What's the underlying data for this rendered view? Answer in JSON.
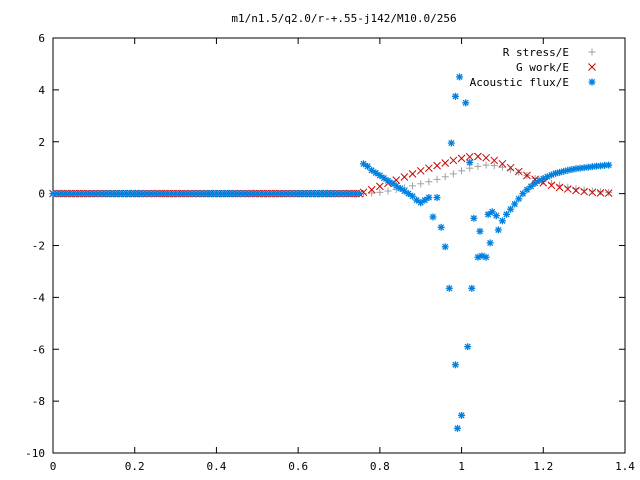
{
  "chart_data": {
    "type": "scatter",
    "title": "m1/n1.5/q2.0/r-+.55-j142/M10.0/256",
    "xlabel": "",
    "ylabel": "",
    "xlim": [
      0,
      1.4
    ],
    "ylim": [
      -10,
      6
    ],
    "grid": false,
    "legend_position": "top-right",
    "x_ticks": [
      {
        "value": 0,
        "label": "0"
      },
      {
        "value": 0.2,
        "label": "0.2"
      },
      {
        "value": 0.4,
        "label": "0.4"
      },
      {
        "value": 0.6,
        "label": "0.6"
      },
      {
        "value": 0.8,
        "label": "0.8"
      },
      {
        "value": 1.0,
        "label": "1"
      },
      {
        "value": 1.2,
        "label": "1.2"
      },
      {
        "value": 1.4,
        "label": "1.4"
      }
    ],
    "y_ticks": [
      {
        "value": 6,
        "label": "6"
      },
      {
        "value": 4,
        "label": "4"
      },
      {
        "value": 2,
        "label": "2"
      },
      {
        "value": 0,
        "label": "0"
      },
      {
        "value": -2,
        "label": "-2"
      },
      {
        "value": -4,
        "label": "-4"
      },
      {
        "value": -6,
        "label": "-6"
      },
      {
        "value": -8,
        "label": "-8"
      },
      {
        "value": -10,
        "label": "-10"
      }
    ],
    "series": [
      {
        "name": "R stress/E",
        "marker": "plus",
        "color": "#a0a0a0",
        "zero_segment": [
          0,
          0.76
        ],
        "points": [
          [
            0.76,
            0
          ],
          [
            0.78,
            0.02
          ],
          [
            0.8,
            0.05
          ],
          [
            0.82,
            0.1
          ],
          [
            0.84,
            0.16
          ],
          [
            0.86,
            0.22
          ],
          [
            0.88,
            0.3
          ],
          [
            0.9,
            0.38
          ],
          [
            0.92,
            0.46
          ],
          [
            0.94,
            0.55
          ],
          [
            0.96,
            0.65
          ],
          [
            0.98,
            0.76
          ],
          [
            1.0,
            0.88
          ],
          [
            1.02,
            0.98
          ],
          [
            1.04,
            1.05
          ],
          [
            1.06,
            1.1
          ],
          [
            1.08,
            1.08
          ],
          [
            1.1,
            1.02
          ],
          [
            1.12,
            0.92
          ],
          [
            1.14,
            0.82
          ],
          [
            1.16,
            0.7
          ],
          [
            1.18,
            0.58
          ],
          [
            1.2,
            0.48
          ],
          [
            1.22,
            0.4
          ],
          [
            1.24,
            0.32
          ],
          [
            1.26,
            0.25
          ],
          [
            1.28,
            0.19
          ],
          [
            1.3,
            0.14
          ],
          [
            1.32,
            0.1
          ],
          [
            1.34,
            0.07
          ],
          [
            1.36,
            0.05
          ]
        ]
      },
      {
        "name": "G work/E",
        "marker": "cross",
        "color": "#cc0000",
        "zero_segment": [
          0,
          0.76
        ],
        "points": [
          [
            0.76,
            0.05
          ],
          [
            0.78,
            0.15
          ],
          [
            0.8,
            0.28
          ],
          [
            0.82,
            0.4
          ],
          [
            0.84,
            0.52
          ],
          [
            0.86,
            0.64
          ],
          [
            0.88,
            0.76
          ],
          [
            0.9,
            0.88
          ],
          [
            0.92,
            0.98
          ],
          [
            0.94,
            1.08
          ],
          [
            0.96,
            1.18
          ],
          [
            0.98,
            1.28
          ],
          [
            1.0,
            1.36
          ],
          [
            1.02,
            1.42
          ],
          [
            1.04,
            1.43
          ],
          [
            1.06,
            1.38
          ],
          [
            1.08,
            1.28
          ],
          [
            1.1,
            1.15
          ],
          [
            1.12,
            1.0
          ],
          [
            1.14,
            0.85
          ],
          [
            1.16,
            0.7
          ],
          [
            1.18,
            0.55
          ],
          [
            1.2,
            0.42
          ],
          [
            1.22,
            0.32
          ],
          [
            1.24,
            0.24
          ],
          [
            1.26,
            0.18
          ],
          [
            1.28,
            0.12
          ],
          [
            1.3,
            0.08
          ],
          [
            1.32,
            0.05
          ],
          [
            1.34,
            0.03
          ],
          [
            1.36,
            0.02
          ]
        ]
      },
      {
        "name": "Acoustic flux/E",
        "marker": "star",
        "color": "#0080e0",
        "zero_segment": [
          0,
          0.76
        ],
        "points": [
          [
            0.76,
            1.15
          ],
          [
            0.77,
            1.05
          ],
          [
            0.78,
            0.9
          ],
          [
            0.79,
            0.8
          ],
          [
            0.8,
            0.7
          ],
          [
            0.81,
            0.6
          ],
          [
            0.82,
            0.5
          ],
          [
            0.83,
            0.4
          ],
          [
            0.84,
            0.3
          ],
          [
            0.85,
            0.2
          ],
          [
            0.86,
            0.1
          ],
          [
            0.87,
            0.0
          ],
          [
            0.88,
            -0.1
          ],
          [
            0.89,
            -0.25
          ],
          [
            0.9,
            -0.35
          ],
          [
            0.91,
            -0.25
          ],
          [
            0.92,
            -0.15
          ],
          [
            0.93,
            -0.9
          ],
          [
            0.94,
            -0.15
          ],
          [
            0.95,
            -1.3
          ],
          [
            0.96,
            -2.05
          ],
          [
            0.97,
            -3.65
          ],
          [
            0.975,
            1.95
          ],
          [
            0.985,
            -6.6
          ],
          [
            0.985,
            3.75
          ],
          [
            0.99,
            -9.05
          ],
          [
            0.995,
            4.5
          ],
          [
            1.0,
            -8.55
          ],
          [
            1.01,
            3.5
          ],
          [
            1.015,
            -5.9
          ],
          [
            1.02,
            1.2
          ],
          [
            1.025,
            -3.65
          ],
          [
            1.03,
            -0.95
          ],
          [
            1.04,
            -2.45
          ],
          [
            1.045,
            -1.45
          ],
          [
            1.05,
            -2.4
          ],
          [
            1.06,
            -2.45
          ],
          [
            1.065,
            -0.8
          ],
          [
            1.07,
            -1.9
          ],
          [
            1.075,
            -0.7
          ],
          [
            1.085,
            -0.85
          ],
          [
            1.09,
            -1.4
          ],
          [
            1.1,
            -1.05
          ],
          [
            1.11,
            -0.8
          ],
          [
            1.12,
            -0.6
          ],
          [
            1.13,
            -0.4
          ],
          [
            1.14,
            -0.2
          ],
          [
            1.15,
            0.0
          ],
          [
            1.16,
            0.15
          ],
          [
            1.17,
            0.28
          ],
          [
            1.18,
            0.4
          ],
          [
            1.19,
            0.5
          ],
          [
            1.2,
            0.58
          ],
          [
            1.21,
            0.65
          ],
          [
            1.22,
            0.72
          ],
          [
            1.23,
            0.78
          ],
          [
            1.24,
            0.82
          ],
          [
            1.25,
            0.86
          ],
          [
            1.26,
            0.9
          ],
          [
            1.27,
            0.93
          ],
          [
            1.28,
            0.96
          ],
          [
            1.29,
            0.98
          ],
          [
            1.3,
            1.0
          ],
          [
            1.31,
            1.02
          ],
          [
            1.32,
            1.04
          ],
          [
            1.33,
            1.06
          ],
          [
            1.34,
            1.07
          ],
          [
            1.35,
            1.09
          ],
          [
            1.36,
            1.1
          ]
        ]
      }
    ]
  }
}
